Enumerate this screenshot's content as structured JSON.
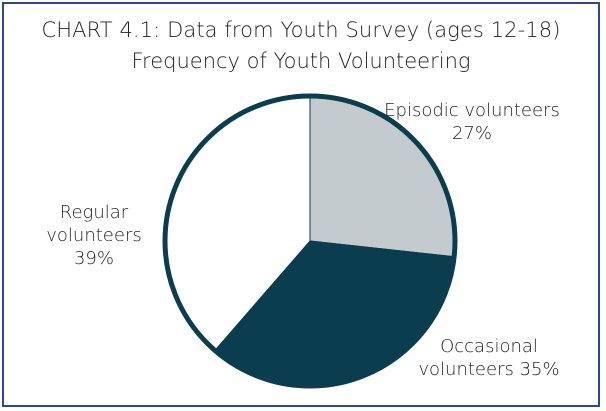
{
  "chart_data": {
    "type": "pie",
    "title": "CHART 4.1: Data from Youth Survey (ages 12-18)",
    "subtitle": "Frequency of Youth Volunteering",
    "slices": [
      {
        "label_lines": [
          "Episodic volunteers",
          "27%"
        ],
        "value": 27,
        "color": "#c4cbcf"
      },
      {
        "label_lines": [
          "Occasional",
          "volunteers 35%"
        ],
        "value": 35,
        "color": "#0a3d4d"
      },
      {
        "label_lines": [
          "Regular",
          "volunteers",
          "39%"
        ],
        "value": 39,
        "color": "#ffffff"
      }
    ],
    "border_color": "#0a3d4d",
    "frame_color": "#2c4a8c"
  }
}
